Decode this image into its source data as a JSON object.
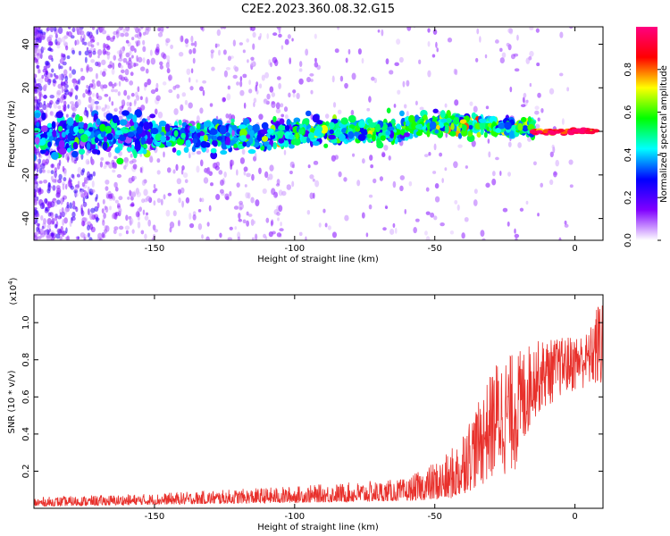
{
  "title": "C2E2.2023.360.08.32.G15",
  "chart_data": [
    {
      "type": "heatmap",
      "xlabel": "Height of straight line (km)",
      "ylabel": "Frequency (Hz)",
      "xlim": [
        -193,
        10
      ],
      "ylim": [
        -50,
        48
      ],
      "xticks": [
        -150,
        -100,
        -50,
        0
      ],
      "yticks": [
        -40,
        -20,
        0,
        20,
        40
      ],
      "colorbar": {
        "label": "Normalized spectral amplitude",
        "range": [
          0,
          1
        ],
        "ticks": [
          0.0,
          0.2,
          0.4,
          0.6,
          0.8
        ],
        "colormap": [
          "#ffffff",
          "#8000ff",
          "#0000ff",
          "#00ffff",
          "#00ff00",
          "#ffff00",
          "#ff0000",
          "#ff0080"
        ]
      },
      "clusters": [
        {
          "x0": -193,
          "x1": -150,
          "f": -2,
          "spread": 4,
          "amp": 0.32
        },
        {
          "x0": -150,
          "x1": -100,
          "f": -2,
          "spread": 3,
          "amp": 0.38
        },
        {
          "x0": -100,
          "x1": -60,
          "f": 0,
          "spread": 2.5,
          "amp": 0.45
        },
        {
          "x0": -60,
          "x1": -30,
          "f": 3,
          "spread": 2,
          "amp": 0.5
        },
        {
          "x0": -30,
          "x1": -15,
          "f": 2,
          "spread": 2,
          "amp": 0.48
        },
        {
          "x0": -15,
          "x1": 8,
          "f": 0,
          "spread": 0.5,
          "amp": 0.92
        }
      ]
    },
    {
      "type": "line",
      "xlabel": "Height of straight line (km)",
      "ylabel": "SNR (10 * v/v)",
      "yscale_label": "(x10",
      "yscale_exp": "4",
      "yscale_close": ")",
      "xlim": [
        -193,
        10
      ],
      "ylim": [
        0,
        1.15
      ],
      "xticks": [
        -150,
        -100,
        -50,
        0
      ],
      "yticks": [
        0.2,
        0.4,
        0.6,
        0.8,
        1.0
      ],
      "color": "#e8302b",
      "envelope": [
        {
          "x": -193,
          "low": 0.01,
          "high": 0.06
        },
        {
          "x": -150,
          "low": 0.02,
          "high": 0.08
        },
        {
          "x": -100,
          "low": 0.03,
          "high": 0.12
        },
        {
          "x": -60,
          "low": 0.04,
          "high": 0.16
        },
        {
          "x": -45,
          "low": 0.05,
          "high": 0.3
        },
        {
          "x": -35,
          "low": 0.1,
          "high": 0.55
        },
        {
          "x": -28,
          "low": 0.15,
          "high": 0.8
        },
        {
          "x": -20,
          "low": 0.2,
          "high": 0.85
        },
        {
          "x": -15,
          "low": 0.48,
          "high": 0.9
        },
        {
          "x": -5,
          "low": 0.6,
          "high": 0.92
        },
        {
          "x": 5,
          "low": 0.65,
          "high": 0.95
        },
        {
          "x": 9,
          "low": 0.62,
          "high": 1.15
        }
      ]
    }
  ]
}
